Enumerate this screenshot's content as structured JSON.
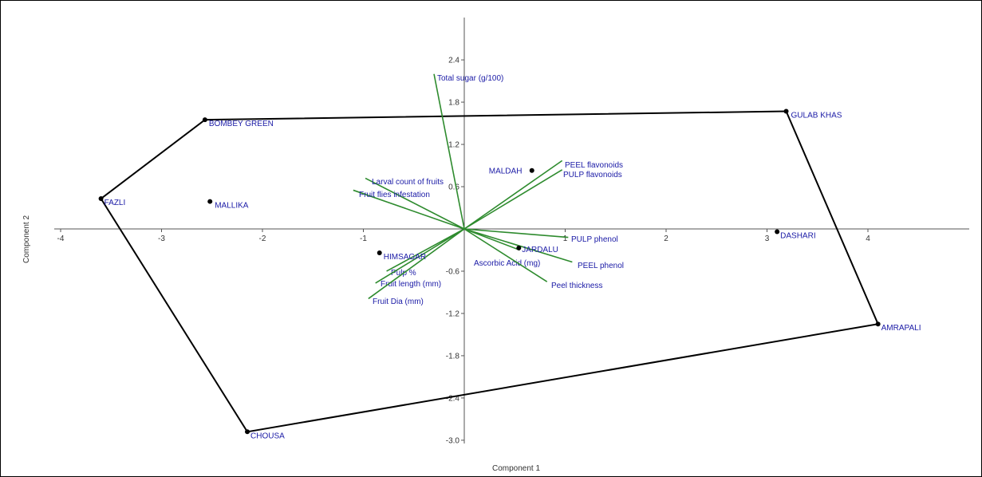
{
  "chart_data": {
    "type": "scatter",
    "title": "",
    "xlabel": "Component 1",
    "ylabel": "Component 2",
    "xlim": [
      -4,
      5
    ],
    "ylim": [
      -3.1,
      2.9
    ],
    "x_ticks": [
      {
        "value": -4,
        "label": "-4"
      },
      {
        "value": -3,
        "label": "-3"
      },
      {
        "value": -2,
        "label": "-2"
      },
      {
        "value": -1,
        "label": "-1"
      },
      {
        "value": 1,
        "label": "1"
      },
      {
        "value": 2,
        "label": "2"
      },
      {
        "value": 3,
        "label": "3"
      },
      {
        "value": 4,
        "label": "4"
      }
    ],
    "y_ticks": [
      {
        "value": 2.4,
        "label": "2.4"
      },
      {
        "value": 1.8,
        "label": "1.8"
      },
      {
        "value": 1.2,
        "label": "1.2"
      },
      {
        "value": 0.6,
        "label": "0.6"
      },
      {
        "value": -0.6,
        "label": "-0.6"
      },
      {
        "value": -1.2,
        "label": "-1.2"
      },
      {
        "value": -1.8,
        "label": "-1.8"
      },
      {
        "value": -2.4,
        "label": "-2.4"
      },
      {
        "value": -3.0,
        "label": "-3.0"
      }
    ],
    "points": [
      {
        "label": "BOMBEY GREEN",
        "x": -2.57,
        "y": 1.55
      },
      {
        "label": "GULAB KHAS",
        "x": 3.19,
        "y": 1.67
      },
      {
        "label": "FAZLI",
        "x": -3.6,
        "y": 0.43
      },
      {
        "label": "MALLIKA",
        "x": -2.52,
        "y": 0.39
      },
      {
        "label": "MALDAH",
        "x": 0.67,
        "y": 0.83
      },
      {
        "label": "DASHARI",
        "x": 3.1,
        "y": -0.04
      },
      {
        "label": "HIMSAGAR",
        "x": -0.84,
        "y": -0.34
      },
      {
        "label": "JARDALU",
        "x": 0.54,
        "y": -0.27
      },
      {
        "label": "AMRAPALI",
        "x": 4.1,
        "y": -1.35
      },
      {
        "label": "CHOUSA",
        "x": -2.15,
        "y": -2.88
      }
    ],
    "hull": [
      "BOMBEY GREEN",
      "GULAB KHAS",
      "AMRAPALI",
      "CHOUSA",
      "FAZLI"
    ],
    "vectors": [
      {
        "label": "Total sugar (g/100)",
        "x": -0.3,
        "y": 2.2
      },
      {
        "label": "PEEL flavonoids",
        "x": 0.97,
        "y": 0.97
      },
      {
        "label": "PULP flavonoids",
        "x": 0.97,
        "y": 0.84
      },
      {
        "label": "Larval count of fruits",
        "x": -0.98,
        "y": 0.72
      },
      {
        "label": "Fruit flies infestation",
        "x": -1.1,
        "y": 0.55
      },
      {
        "label": "PULP phenol",
        "x": 1.03,
        "y": -0.12
      },
      {
        "label": "PEEL phenol",
        "x": 1.07,
        "y": -0.47
      },
      {
        "label": "Ascorbic Acid (mg)",
        "x": 0.55,
        "y": -0.3
      },
      {
        "label": "Peel thickness",
        "x": 0.82,
        "y": -0.75
      },
      {
        "label": "Pulp %",
        "x": -0.77,
        "y": -0.6
      },
      {
        "label": "Fruit length (mm)",
        "x": -0.88,
        "y": -0.77
      },
      {
        "label": "Fruit Dia (mm)",
        "x": -0.95,
        "y": -0.99
      }
    ],
    "colors": {
      "hull": "#000000",
      "vectors": "#2e8b2e",
      "labels": "#1a1aa6",
      "points": "#000000"
    }
  }
}
